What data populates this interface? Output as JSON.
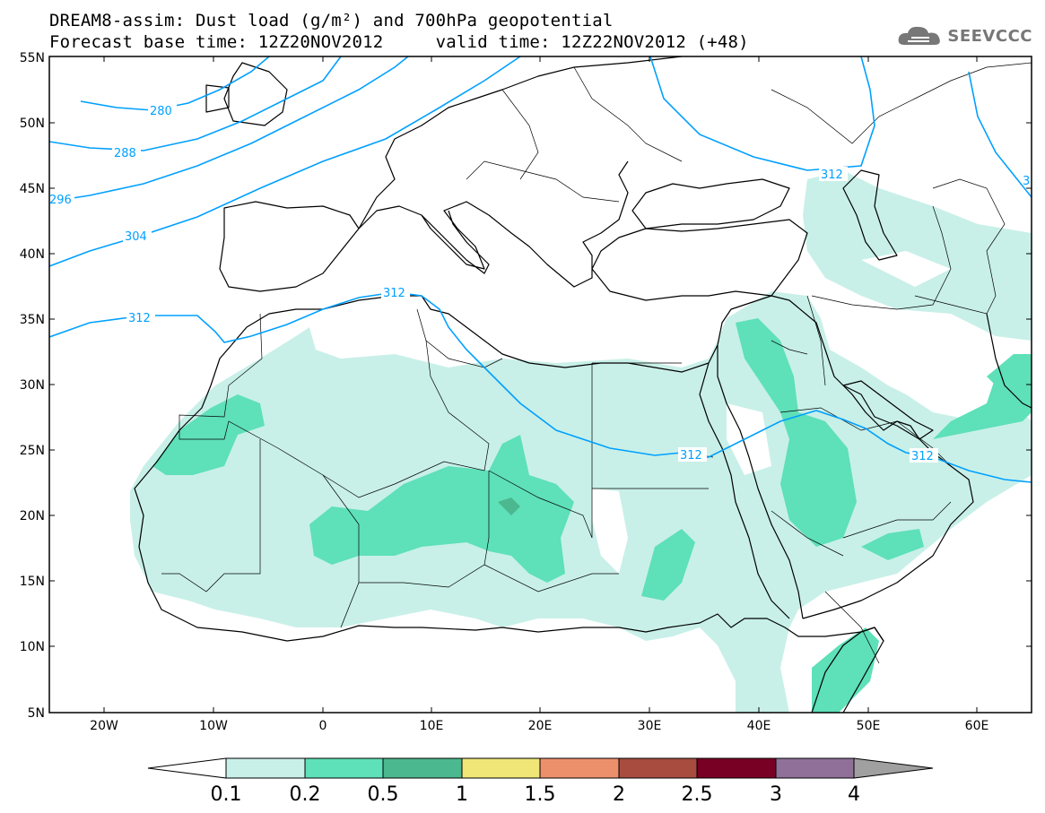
{
  "title": {
    "line1": "DREAM8-assim: Dust load (g/m²) and 700hPa geopotential",
    "line2": "Forecast base time: 12Z20NOV2012     valid time: 12Z22NOV2012 (+48)"
  },
  "logo": {
    "text": "SEEVCCC",
    "icon": "cloud-logo-icon"
  },
  "axes": {
    "lat_labels": [
      "55N",
      "50N",
      "45N",
      "40N",
      "35N",
      "30N",
      "25N",
      "20N",
      "15N",
      "10N",
      "5N"
    ],
    "lon_labels": [
      "20W",
      "10W",
      "0",
      "10E",
      "20E",
      "30E",
      "40E",
      "50E",
      "60E"
    ]
  },
  "contours": {
    "labels": [
      "280",
      "288",
      "296",
      "304",
      "312",
      "312",
      "312",
      "312",
      "312",
      "3"
    ],
    "color": "#00a0ff"
  },
  "colorbar": {
    "labels": [
      "0.1",
      "0.2",
      "0.5",
      "1",
      "1.5",
      "2",
      "2.5",
      "3",
      "4"
    ],
    "colors": [
      "#c8f0e8",
      "#5ee0b8",
      "#4cb890",
      "#f0e678",
      "#ec906c",
      "#a84c40",
      "#780024",
      "#907098",
      "#a0a0a0"
    ]
  },
  "dust_colors": {
    "low": "#c8f0e8",
    "mid": "#5ee0b8"
  }
}
